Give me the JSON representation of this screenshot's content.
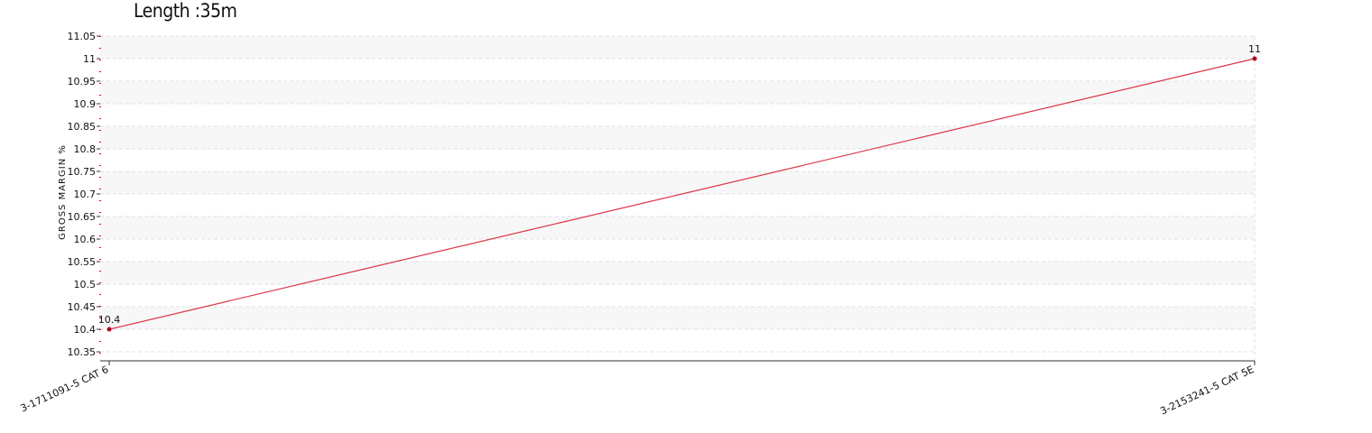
{
  "chart_title": "Length :35m",
  "chart_data": {
    "type": "line",
    "title": "Length :35m",
    "xlabel": "",
    "ylabel": "GROSS MARGIN %",
    "categories": [
      "3-1711091-5 CAT 6",
      "3-2153241-5 CAT 5E"
    ],
    "series": [
      {
        "values": [
          10.4,
          11
        ],
        "data_labels": [
          "10.4",
          "11"
        ]
      }
    ],
    "ylim": [
      10.35,
      11.05
    ],
    "yticks": [
      "10.35",
      "10.4",
      "10.45",
      "10.5",
      "10.55",
      "10.6",
      "10.65",
      "10.7",
      "10.75",
      "10.8",
      "10.85",
      "10.9",
      "10.95",
      "11",
      "11.05"
    ],
    "grid": true,
    "legend": "none"
  },
  "colors": {
    "line": "#dc3545",
    "point": "#b00020",
    "band": "#f7f7f7",
    "grid": "#e2e2e2",
    "axis": "#333333",
    "axis_tick": "#e0001b"
  }
}
